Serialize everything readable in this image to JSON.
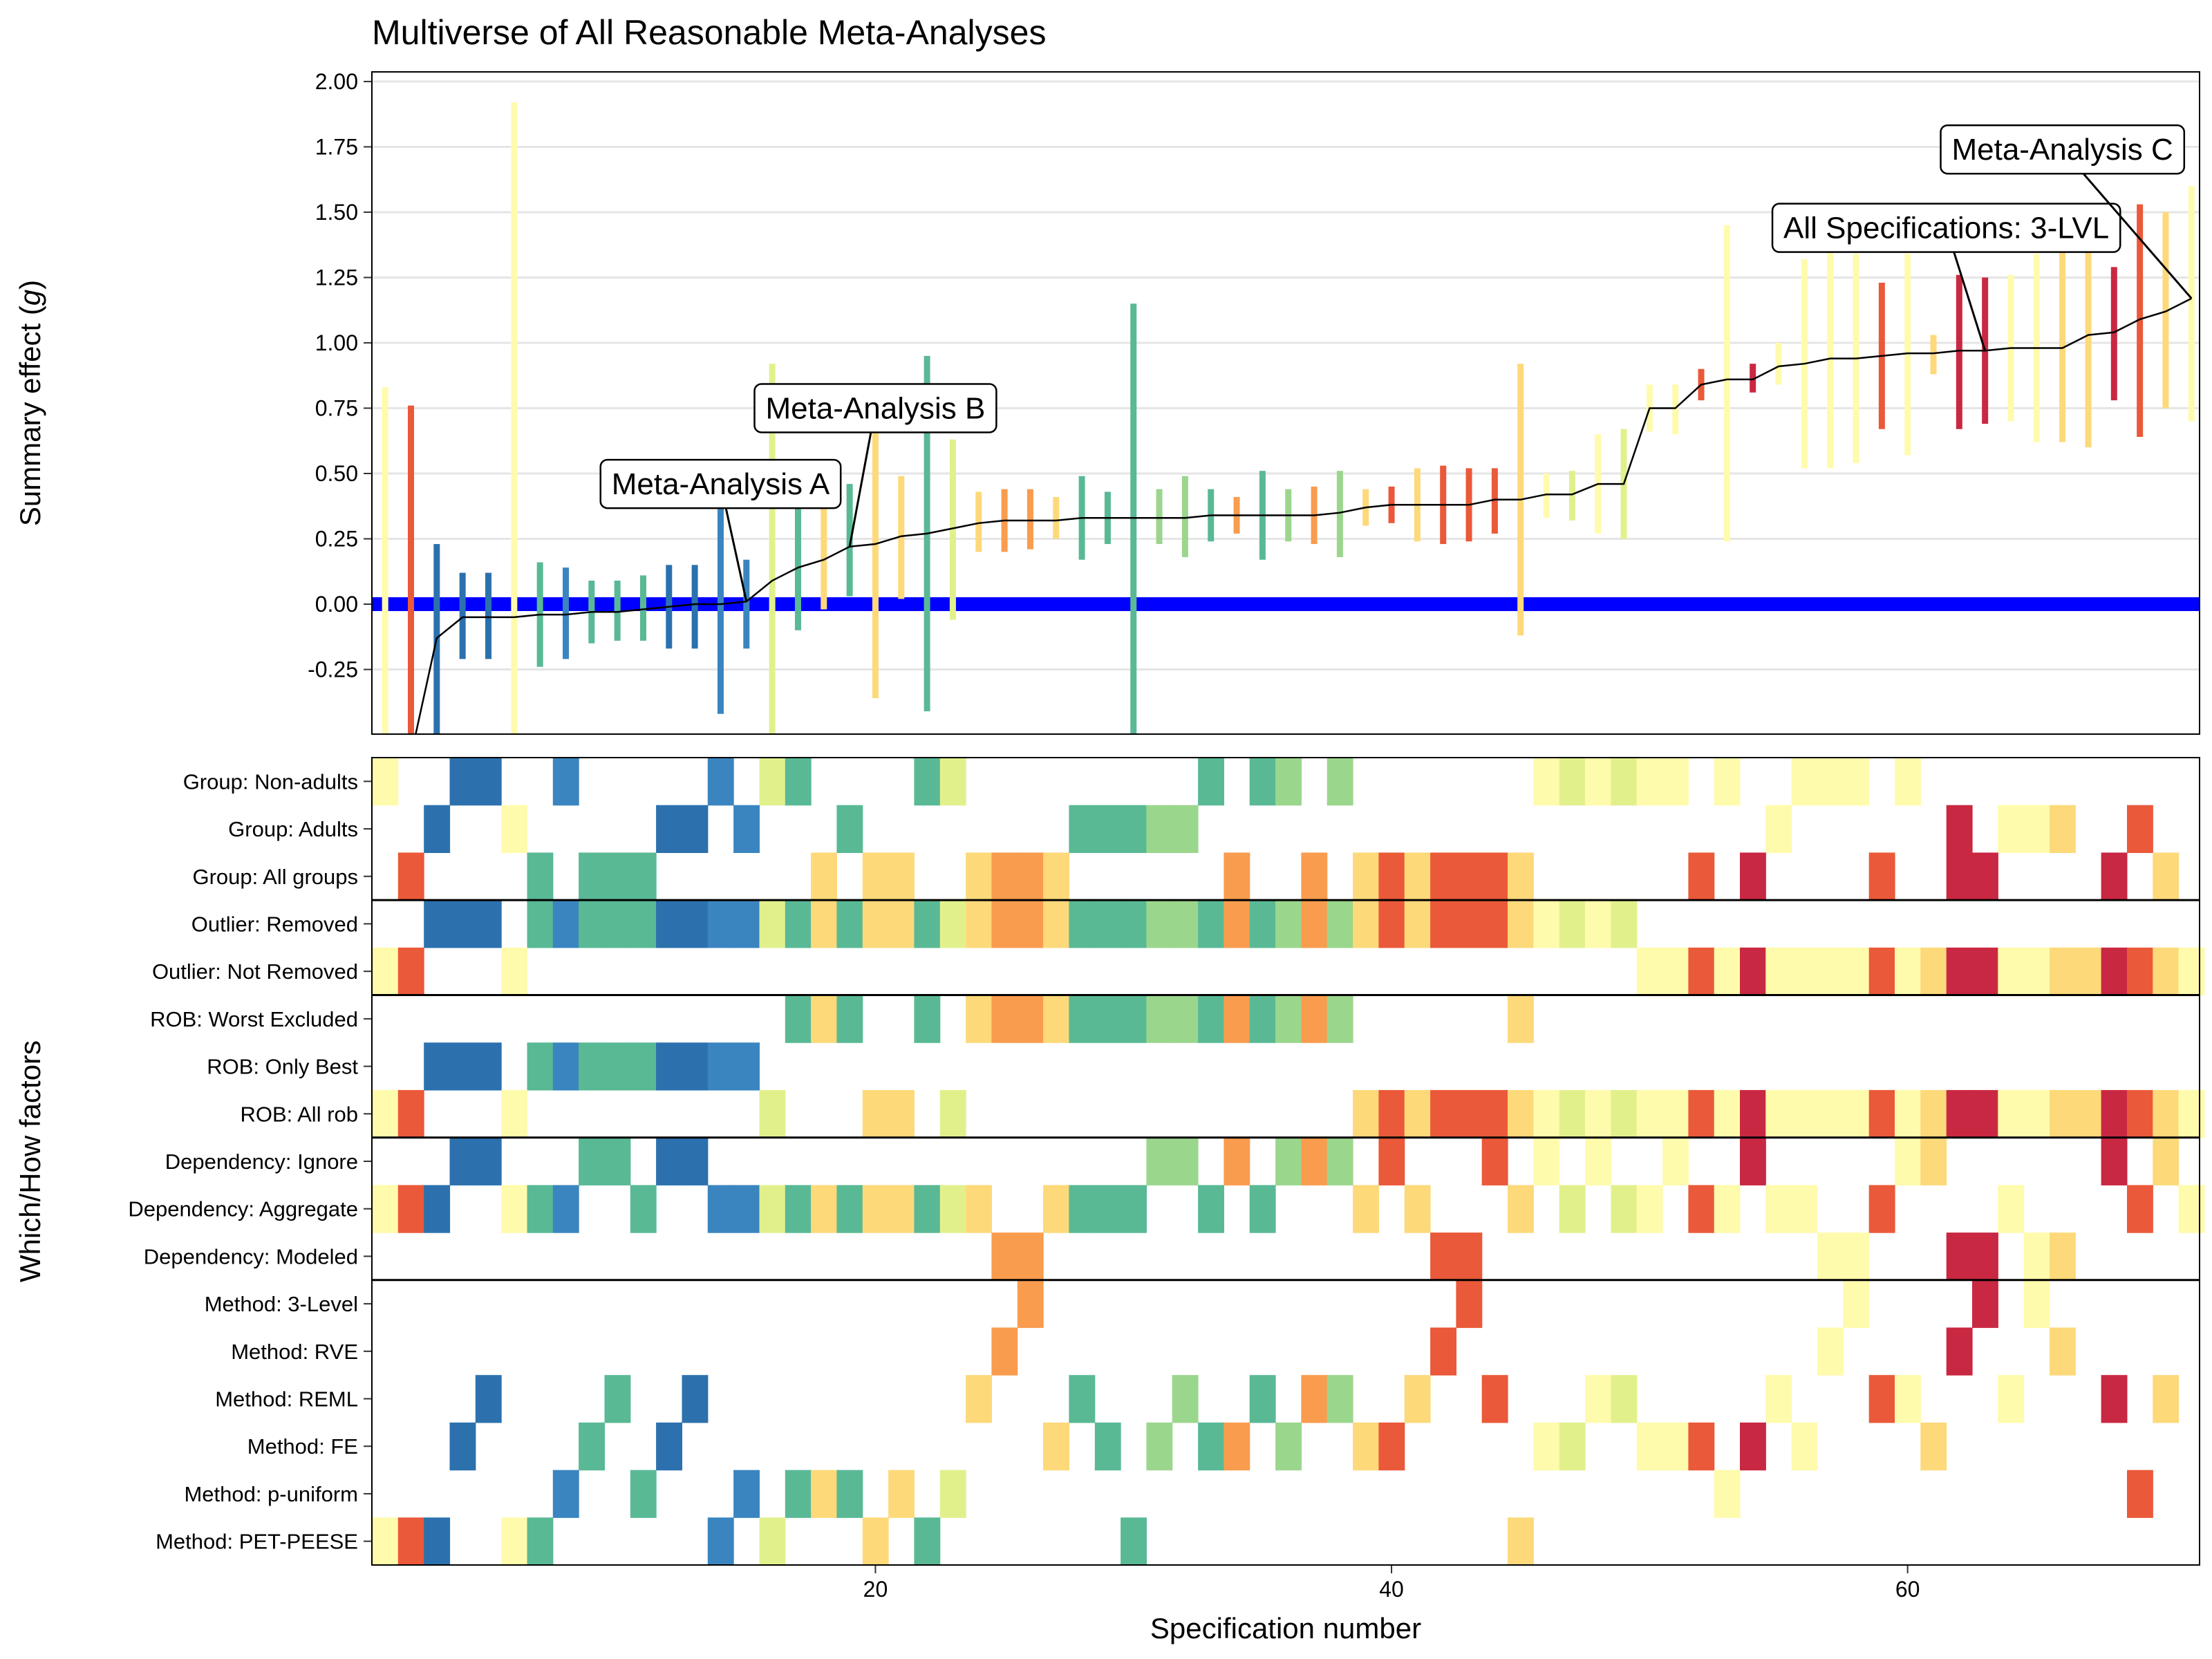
{
  "chart_data": {
    "type": "specification-curve",
    "title": "Multiverse of All Reasonable Meta-Analyses",
    "ylabel_prefix": "Summary effect (",
    "ylabel_italic": "g",
    "ylabel_suffix": ")",
    "xlabel": "Specification number",
    "y_factor_label": "Which/How factors",
    "ylim": [
      -0.5,
      2.0
    ],
    "yticks": [
      -0.25,
      0.0,
      0.25,
      0.5,
      0.75,
      1.0,
      1.25,
      1.5,
      1.75,
      2.0
    ],
    "ytick_labels": [
      "-0.25",
      "0.00",
      "0.25",
      "0.50",
      "0.75",
      "1.00",
      "1.25",
      "1.50",
      "1.75",
      "2.00"
    ],
    "xlim": [
      0.5,
      70.5
    ],
    "xticks": [
      20,
      40,
      60
    ],
    "xtick_labels": [
      "20",
      "40",
      "60"
    ],
    "reference_line": {
      "y": 0,
      "color": "#0000ff"
    },
    "palette": {
      "c0": "#2c71ae",
      "c1": "#3a85bf",
      "c2": "#59b995",
      "c3": "#9bd68d",
      "c4": "#e2f08c",
      "c5": "#fffbac",
      "c6": "#fdd97a",
      "c7": "#f99c4e",
      "c8": "#ea5939",
      "c9": "#c92842"
    },
    "specifications": [
      {
        "x": 1,
        "y": -0.62,
        "lo": -1.9,
        "hi": 0.83,
        "c": "c5"
      },
      {
        "x": 2,
        "y": -0.58,
        "lo": -1.9,
        "hi": 0.76,
        "c": "c8"
      },
      {
        "x": 3,
        "y": -0.13,
        "lo": -0.5,
        "hi": 0.23,
        "c": "c0"
      },
      {
        "x": 4,
        "y": -0.05,
        "lo": -0.21,
        "hi": 0.12,
        "c": "c0"
      },
      {
        "x": 5,
        "y": -0.05,
        "lo": -0.21,
        "hi": 0.12,
        "c": "c0"
      },
      {
        "x": 6,
        "y": -0.05,
        "lo": -0.5,
        "hi": 1.92,
        "c": "c5"
      },
      {
        "x": 7,
        "y": -0.04,
        "lo": -0.24,
        "hi": 0.16,
        "c": "c2"
      },
      {
        "x": 8,
        "y": -0.04,
        "lo": -0.21,
        "hi": 0.14,
        "c": "c1"
      },
      {
        "x": 9,
        "y": -0.03,
        "lo": -0.15,
        "hi": 0.09,
        "c": "c2"
      },
      {
        "x": 10,
        "y": -0.03,
        "lo": -0.14,
        "hi": 0.09,
        "c": "c2"
      },
      {
        "x": 11,
        "y": -0.02,
        "lo": -0.14,
        "hi": 0.11,
        "c": "c2"
      },
      {
        "x": 12,
        "y": -0.01,
        "lo": -0.17,
        "hi": 0.15,
        "c": "c0"
      },
      {
        "x": 13,
        "y": 0.0,
        "lo": -0.17,
        "hi": 0.15,
        "c": "c0"
      },
      {
        "x": 14,
        "y": 0.0,
        "lo": -0.42,
        "hi": 0.37,
        "c": "c1"
      },
      {
        "x": 15,
        "y": 0.01,
        "lo": -0.17,
        "hi": 0.17,
        "c": "c1"
      },
      {
        "x": 16,
        "y": 0.09,
        "lo": -0.5,
        "hi": 0.92,
        "c": "c4"
      },
      {
        "x": 17,
        "y": 0.14,
        "lo": -0.1,
        "hi": 0.37,
        "c": "c2"
      },
      {
        "x": 18,
        "y": 0.17,
        "lo": -0.02,
        "hi": 0.37,
        "c": "c6"
      },
      {
        "x": 19,
        "y": 0.22,
        "lo": 0.03,
        "hi": 0.46,
        "c": "c2"
      },
      {
        "x": 20,
        "y": 0.23,
        "lo": -0.36,
        "hi": 0.82,
        "c": "c6"
      },
      {
        "x": 21,
        "y": 0.26,
        "lo": 0.02,
        "hi": 0.49,
        "c": "c6"
      },
      {
        "x": 22,
        "y": 0.27,
        "lo": -0.41,
        "hi": 0.95,
        "c": "c2"
      },
      {
        "x": 23,
        "y": 0.29,
        "lo": -0.06,
        "hi": 0.63,
        "c": "c4"
      },
      {
        "x": 24,
        "y": 0.31,
        "lo": 0.2,
        "hi": 0.43,
        "c": "c6"
      },
      {
        "x": 25,
        "y": 0.32,
        "lo": 0.2,
        "hi": 0.44,
        "c": "c7"
      },
      {
        "x": 26,
        "y": 0.32,
        "lo": 0.21,
        "hi": 0.44,
        "c": "c7"
      },
      {
        "x": 27,
        "y": 0.32,
        "lo": 0.25,
        "hi": 0.41,
        "c": "c6"
      },
      {
        "x": 28,
        "y": 0.33,
        "lo": 0.17,
        "hi": 0.49,
        "c": "c2"
      },
      {
        "x": 29,
        "y": 0.33,
        "lo": 0.23,
        "hi": 0.43,
        "c": "c2"
      },
      {
        "x": 30,
        "y": 0.33,
        "lo": -0.5,
        "hi": 1.15,
        "c": "c2"
      },
      {
        "x": 31,
        "y": 0.33,
        "lo": 0.23,
        "hi": 0.44,
        "c": "c3"
      },
      {
        "x": 32,
        "y": 0.33,
        "lo": 0.18,
        "hi": 0.49,
        "c": "c3"
      },
      {
        "x": 33,
        "y": 0.34,
        "lo": 0.24,
        "hi": 0.44,
        "c": "c2"
      },
      {
        "x": 34,
        "y": 0.34,
        "lo": 0.27,
        "hi": 0.41,
        "c": "c7"
      },
      {
        "x": 35,
        "y": 0.34,
        "lo": 0.17,
        "hi": 0.51,
        "c": "c2"
      },
      {
        "x": 36,
        "y": 0.34,
        "lo": 0.24,
        "hi": 0.44,
        "c": "c3"
      },
      {
        "x": 37,
        "y": 0.34,
        "lo": 0.23,
        "hi": 0.45,
        "c": "c7"
      },
      {
        "x": 38,
        "y": 0.35,
        "lo": 0.18,
        "hi": 0.51,
        "c": "c3"
      },
      {
        "x": 39,
        "y": 0.37,
        "lo": 0.3,
        "hi": 0.44,
        "c": "c6"
      },
      {
        "x": 40,
        "y": 0.38,
        "lo": 0.31,
        "hi": 0.45,
        "c": "c8"
      },
      {
        "x": 41,
        "y": 0.38,
        "lo": 0.24,
        "hi": 0.52,
        "c": "c6"
      },
      {
        "x": 42,
        "y": 0.38,
        "lo": 0.23,
        "hi": 0.53,
        "c": "c8"
      },
      {
        "x": 43,
        "y": 0.38,
        "lo": 0.24,
        "hi": 0.52,
        "c": "c8"
      },
      {
        "x": 44,
        "y": 0.4,
        "lo": 0.27,
        "hi": 0.52,
        "c": "c8"
      },
      {
        "x": 45,
        "y": 0.4,
        "lo": -0.12,
        "hi": 0.92,
        "c": "c6"
      },
      {
        "x": 46,
        "y": 0.42,
        "lo": 0.33,
        "hi": 0.5,
        "c": "c5"
      },
      {
        "x": 47,
        "y": 0.42,
        "lo": 0.32,
        "hi": 0.51,
        "c": "c4"
      },
      {
        "x": 48,
        "y": 0.46,
        "lo": 0.27,
        "hi": 0.65,
        "c": "c5"
      },
      {
        "x": 49,
        "y": 0.46,
        "lo": 0.25,
        "hi": 0.67,
        "c": "c4"
      },
      {
        "x": 50,
        "y": 0.75,
        "lo": 0.66,
        "hi": 0.84,
        "c": "c5"
      },
      {
        "x": 51,
        "y": 0.75,
        "lo": 0.65,
        "hi": 0.84,
        "c": "c5"
      },
      {
        "x": 52,
        "y": 0.84,
        "lo": 0.78,
        "hi": 0.9,
        "c": "c8"
      },
      {
        "x": 53,
        "y": 0.86,
        "lo": 0.24,
        "hi": 1.45,
        "c": "c5"
      },
      {
        "x": 54,
        "y": 0.86,
        "lo": 0.81,
        "hi": 0.92,
        "c": "c9"
      },
      {
        "x": 55,
        "y": 0.91,
        "lo": 0.84,
        "hi": 1.0,
        "c": "c5"
      },
      {
        "x": 56,
        "y": 0.92,
        "lo": 0.52,
        "hi": 1.32,
        "c": "c5"
      },
      {
        "x": 57,
        "y": 0.94,
        "lo": 0.52,
        "hi": 1.36,
        "c": "c5"
      },
      {
        "x": 58,
        "y": 0.94,
        "lo": 0.54,
        "hi": 1.34,
        "c": "c5"
      },
      {
        "x": 59,
        "y": 0.95,
        "lo": 0.67,
        "hi": 1.23,
        "c": "c8"
      },
      {
        "x": 60,
        "y": 0.96,
        "lo": 0.57,
        "hi": 1.34,
        "c": "c5"
      },
      {
        "x": 61,
        "y": 0.96,
        "lo": 0.88,
        "hi": 1.03,
        "c": "c6"
      },
      {
        "x": 62,
        "y": 0.97,
        "lo": 0.67,
        "hi": 1.26,
        "c": "c9"
      },
      {
        "x": 63,
        "y": 0.97,
        "lo": 0.69,
        "hi": 1.25,
        "c": "c9"
      },
      {
        "x": 64,
        "y": 0.98,
        "lo": 0.7,
        "hi": 1.26,
        "c": "c5"
      },
      {
        "x": 65,
        "y": 0.98,
        "lo": 0.62,
        "hi": 1.34,
        "c": "c5"
      },
      {
        "x": 66,
        "y": 0.98,
        "lo": 0.62,
        "hi": 1.36,
        "c": "c6"
      },
      {
        "x": 67,
        "y": 1.03,
        "lo": 0.6,
        "hi": 1.37,
        "c": "c6"
      },
      {
        "x": 68,
        "y": 1.04,
        "lo": 0.78,
        "hi": 1.29,
        "c": "c9"
      },
      {
        "x": 69,
        "y": 1.09,
        "lo": 0.64,
        "hi": 1.53,
        "c": "c8"
      },
      {
        "x": 70,
        "y": 1.12,
        "lo": 0.75,
        "hi": 1.5,
        "c": "c6"
      },
      {
        "x": 71,
        "y": 1.17,
        "lo": 0.7,
        "hi": 1.6,
        "c": "c5"
      }
    ],
    "annotations": [
      {
        "label": "Meta-Analysis A",
        "x": 15,
        "y": 0.01,
        "label_x": 14,
        "label_y": 0.46
      },
      {
        "label": "Meta-Analysis B",
        "x": 19,
        "y": 0.22,
        "label_x": 20,
        "label_y": 0.75
      },
      {
        "label": "All Specifications: 3-LVL",
        "x": 63,
        "y": 0.97,
        "label_x": 61.5,
        "label_y": 1.44
      },
      {
        "label": "Meta-Analysis C",
        "x": 71,
        "y": 1.17,
        "label_x": 66,
        "label_y": 1.74
      }
    ],
    "factor_rows": [
      "Group: Non-adults",
      "Group: Adults",
      "Group: All groups",
      "Outlier: Removed",
      "Outlier: Not Removed",
      "ROB: Worst Excluded",
      "ROB: Only Best",
      "ROB: All rob",
      "Dependency: Ignore",
      "Dependency: Aggregate",
      "Dependency: Modeled",
      "Method: 3-Level",
      "Method: RVE",
      "Method: REML",
      "Method: FE",
      "Method: p-uniform",
      "Method: PET-PEESE"
    ],
    "factor_group_dividers_after_row": [
      2,
      4,
      7,
      10
    ],
    "factor_cells": [
      {
        "r": 0,
        "x": [
          1,
          4,
          5,
          8,
          14,
          16,
          17,
          22,
          23,
          33,
          35,
          36,
          38,
          46,
          47,
          48,
          49,
          50,
          51,
          53,
          56,
          57,
          58,
          60
        ]
      },
      {
        "r": 1,
        "x": [
          3,
          6,
          12,
          13,
          15,
          19,
          28,
          29,
          30,
          31,
          32,
          55,
          62,
          64,
          65,
          66,
          69
        ]
      },
      {
        "r": 2,
        "x": [
          2,
          7,
          9,
          10,
          11,
          18,
          20,
          21,
          24,
          25,
          26,
          27,
          34,
          37,
          39,
          40,
          41,
          42,
          43,
          44,
          45,
          52,
          54,
          59,
          62,
          63,
          68,
          70
        ]
      },
      {
        "r": 3,
        "x": [
          3,
          4,
          5,
          7,
          8,
          9,
          10,
          11,
          12,
          13,
          14,
          15,
          16,
          17,
          18,
          19,
          20,
          21,
          22,
          23,
          24,
          25,
          26,
          27,
          28,
          29,
          30,
          31,
          32,
          33,
          34,
          35,
          36,
          37,
          38,
          39,
          40,
          41,
          42,
          43,
          44,
          45,
          46,
          47,
          48,
          49
        ]
      },
      {
        "r": 4,
        "x": [
          1,
          2,
          6,
          50,
          51,
          52,
          53,
          54,
          55,
          56,
          57,
          58,
          59,
          60,
          61,
          62,
          63,
          64,
          65,
          66,
          67,
          68,
          69,
          70,
          71
        ]
      },
      {
        "r": 5,
        "x": [
          17,
          18,
          19,
          22,
          24,
          25,
          26,
          27,
          28,
          29,
          30,
          31,
          32,
          33,
          34,
          35,
          36,
          37,
          38,
          45
        ]
      },
      {
        "r": 6,
        "x": [
          3,
          4,
          5,
          7,
          8,
          9,
          10,
          11,
          12,
          13,
          14,
          15
        ]
      },
      {
        "r": 7,
        "x": [
          1,
          2,
          6,
          16,
          20,
          21,
          23,
          39,
          40,
          41,
          42,
          43,
          44,
          45,
          46,
          47,
          48,
          49,
          50,
          51,
          52,
          53,
          54,
          55,
          56,
          57,
          58,
          59,
          60,
          61,
          62,
          63,
          64,
          65,
          66,
          67,
          68,
          69,
          70,
          71
        ]
      },
      {
        "r": 8,
        "x": [
          4,
          5,
          9,
          10,
          12,
          13,
          31,
          32,
          34,
          36,
          37,
          38,
          40,
          44,
          46,
          48,
          51,
          54,
          60,
          61,
          68,
          70
        ]
      },
      {
        "r": 9,
        "x": [
          1,
          2,
          3,
          6,
          7,
          8,
          11,
          14,
          15,
          16,
          17,
          18,
          19,
          20,
          21,
          22,
          23,
          24,
          27,
          28,
          29,
          30,
          33,
          35,
          39,
          41,
          45,
          47,
          49,
          50,
          52,
          53,
          55,
          56,
          59,
          64,
          69,
          71
        ]
      },
      {
        "r": 10,
        "x": [
          25,
          26,
          42,
          43,
          57,
          58,
          62,
          63,
          65,
          66
        ]
      },
      {
        "r": 11,
        "x": [
          26,
          43,
          58,
          63,
          65
        ]
      },
      {
        "r": 12,
        "x": [
          25,
          42,
          57,
          62,
          66
        ]
      },
      {
        "r": 13,
        "x": [
          5,
          10,
          13,
          24,
          28,
          32,
          35,
          37,
          38,
          41,
          44,
          48,
          49,
          55,
          59,
          60,
          64,
          68,
          70
        ]
      },
      {
        "r": 14,
        "x": [
          4,
          9,
          12,
          27,
          29,
          31,
          33,
          34,
          36,
          39,
          40,
          46,
          47,
          50,
          51,
          52,
          54,
          56,
          61
        ]
      },
      {
        "r": 15,
        "x": [
          8,
          11,
          15,
          17,
          18,
          19,
          21,
          23,
          53,
          69
        ]
      },
      {
        "r": 16,
        "x": [
          1,
          2,
          3,
          6,
          7,
          14,
          16,
          20,
          22,
          30,
          45
        ]
      }
    ]
  }
}
